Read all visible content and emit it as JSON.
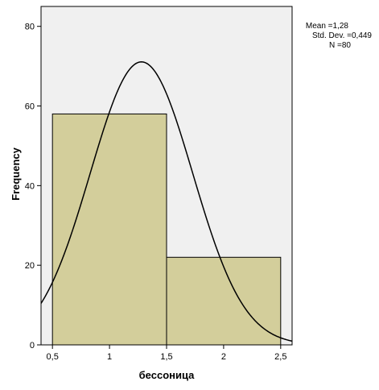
{
  "chart_data": {
    "type": "histogram",
    "xlabel": "бессоница",
    "ylabel": "Frequency",
    "xlim": [
      0.4,
      2.6
    ],
    "ylim": [
      0,
      85
    ],
    "x_ticks": [
      0.5,
      1,
      1.5,
      2,
      2.5
    ],
    "x_tick_labels": [
      "0,5",
      "1",
      "1,5",
      "2",
      "2,5"
    ],
    "y_ticks": [
      0,
      20,
      40,
      60,
      80
    ],
    "y_tick_labels": [
      "0",
      "20",
      "40",
      "60",
      "80"
    ],
    "bins": [
      {
        "start": 0.5,
        "end": 1.5,
        "count": 58
      },
      {
        "start": 1.5,
        "end": 2.5,
        "count": 22
      }
    ],
    "normal_curve": {
      "mean": 1.28,
      "sd": 0.449,
      "n": 80,
      "bin_width": 1.0
    },
    "stats": {
      "mean": "Mean =1,28",
      "sd": "Std. Dev. =0,449",
      "n": "N =80"
    },
    "colors": {
      "plot_background": "#f0f0f0",
      "bar_fill": "#d3ce9b",
      "bar_stroke": "#000000",
      "curve": "#000000"
    }
  }
}
